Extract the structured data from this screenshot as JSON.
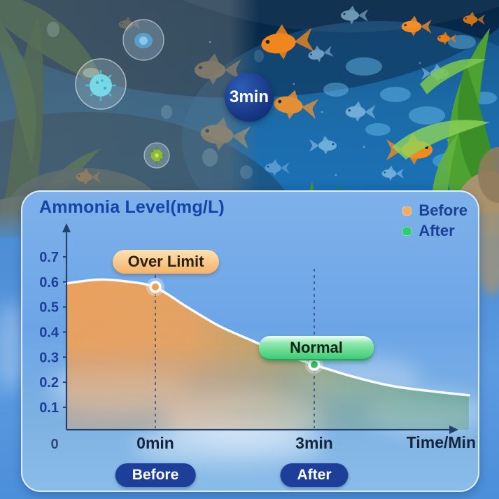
{
  "photo": {
    "badge_label": "3min"
  },
  "chart_data": {
    "type": "area",
    "title": "Ammonia Level(mg/L)",
    "xlabel": "Time/Min",
    "origin_label": "0",
    "ylim": [
      0,
      0.75
    ],
    "grid": false,
    "legend_position": "top-right",
    "y_ticks": [
      0.7,
      0.6,
      0.5,
      0.4,
      0.3,
      0.2,
      0.1
    ],
    "x_ticks": [
      {
        "t": 0,
        "label": "0min"
      },
      {
        "t": 3,
        "label": "3min"
      }
    ],
    "series": [
      {
        "name": "Ammonia Level",
        "points": [
          [
            -1.68,
            0.594
          ],
          [
            -1.1,
            0.609
          ],
          [
            -0.55,
            0.602
          ],
          [
            0,
            0.578
          ],
          [
            0.6,
            0.5
          ],
          [
            1.2,
            0.425
          ],
          [
            1.8,
            0.368
          ],
          [
            2.4,
            0.314
          ],
          [
            3,
            0.27
          ],
          [
            3.7,
            0.224
          ],
          [
            4.5,
            0.184
          ],
          [
            5.3,
            0.162
          ],
          [
            5.92,
            0.148
          ]
        ]
      }
    ],
    "markers": [
      {
        "t": 0,
        "value": 0.58,
        "label": "Over Limit",
        "badge": "Before",
        "color": "#f0a050"
      },
      {
        "t": 3,
        "value": 0.27,
        "label": "Normal",
        "badge": "After",
        "color": "#35c06a"
      }
    ],
    "legend": [
      {
        "label": "Before",
        "color": "#f2ad60"
      },
      {
        "label": "After",
        "color": "#2ed06e"
      }
    ]
  },
  "colors": {
    "accent_navy": "#1d3f99",
    "panel_blue": "#74abe8",
    "curve_orange": "#f0a050",
    "curve_green": "#5f9c70",
    "badge_circle_navy": "#16337e"
  }
}
